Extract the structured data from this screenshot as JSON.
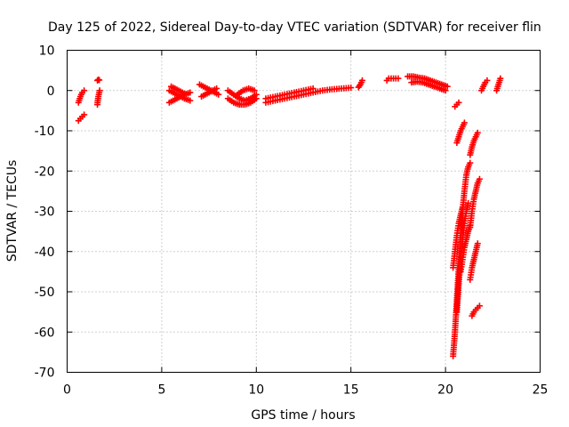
{
  "chart_data": {
    "type": "scatter",
    "title": "Day 125 of 2022, Sidereal Day-to-day VTEC variation (SDTVAR) for receiver flin",
    "xlabel": "GPS time / hours",
    "ylabel": "SDTVAR / TECUs",
    "xlim": [
      0,
      25
    ],
    "ylim": [
      -70,
      10
    ],
    "xticks": [
      "0",
      "5",
      "10",
      "15",
      "20",
      "25"
    ],
    "yticks": [
      "10",
      "0",
      "-10",
      "-20",
      "-30",
      "-40",
      "-50",
      "-60",
      "-70"
    ],
    "grid": true,
    "marker": "plus",
    "color": "#ff0000",
    "segments": [
      {
        "x": [
          0.6,
          0.7,
          0.8,
          0.9
        ],
        "y": [
          -3,
          -1.5,
          -0.5,
          0
        ]
      },
      {
        "x": [
          0.6,
          0.7,
          0.8,
          0.9
        ],
        "y": [
          -7.5,
          -7,
          -6.5,
          -6
        ]
      },
      {
        "x": [
          1.6,
          1.65,
          1.7
        ],
        "y": [
          2.5,
          2.7,
          2.6
        ]
      },
      {
        "x": [
          1.6,
          1.62,
          1.65,
          1.7,
          1.72
        ],
        "y": [
          -3.5,
          -2.5,
          -1.5,
          -0.5,
          0
        ]
      },
      {
        "x": [
          5.4,
          5.6,
          5.8,
          6.0,
          6.2,
          6.5
        ],
        "y": [
          0,
          -0.5,
          -1,
          -1.5,
          -2,
          -2.5
        ]
      },
      {
        "x": [
          5.4,
          5.6,
          5.8,
          6.0,
          6.2,
          6.5
        ],
        "y": [
          -3,
          -2.5,
          -2,
          -1.5,
          -1,
          -0.5
        ]
      },
      {
        "x": [
          5.5,
          5.7,
          5.9,
          6.1,
          6.3
        ],
        "y": [
          1,
          0.5,
          0,
          -0.5,
          -1
        ]
      },
      {
        "x": [
          7.0,
          7.2,
          7.4,
          7.6,
          7.8,
          8.0
        ],
        "y": [
          1.5,
          1,
          0.5,
          0,
          -0.5,
          -1
        ]
      },
      {
        "x": [
          7.1,
          7.3,
          7.5,
          7.7,
          7.9
        ],
        "y": [
          -1.5,
          -1,
          -0.5,
          0,
          0.5
        ]
      },
      {
        "x": [
          8.5,
          8.8,
          9.1,
          9.4,
          9.7,
          10.0
        ],
        "y": [
          0,
          -1,
          -2,
          -2.5,
          -2,
          -1
        ]
      },
      {
        "x": [
          8.5,
          8.8,
          9.1,
          9.4,
          9.7,
          10.0
        ],
        "y": [
          -2,
          -3,
          -3.5,
          -3.5,
          -3,
          -2
        ]
      },
      {
        "x": [
          9.0,
          9.3,
          9.6,
          9.9
        ],
        "y": [
          -1,
          0,
          0.5,
          0
        ]
      },
      {
        "x": [
          10.5,
          11.0,
          11.5,
          12.0,
          12.5,
          13.0,
          13.5,
          14.0,
          14.5,
          15.0
        ],
        "y": [
          -3,
          -2.5,
          -2,
          -1.5,
          -1,
          -0.5,
          0,
          0.3,
          0.5,
          0.7
        ]
      },
      {
        "x": [
          10.5,
          11.0,
          11.5,
          12.0,
          12.5,
          13.0
        ],
        "y": [
          -2,
          -1.5,
          -1,
          -0.5,
          0,
          0.5
        ]
      },
      {
        "x": [
          15.4,
          15.5,
          15.6
        ],
        "y": [
          0.8,
          1.5,
          2.5
        ]
      },
      {
        "x": [
          16.9,
          17.0,
          17.5
        ],
        "y": [
          2.5,
          3,
          3
        ]
      },
      {
        "x": [
          18.0,
          18.3,
          18.6,
          18.9,
          19.2,
          19.5,
          19.8,
          20.1
        ],
        "y": [
          3.5,
          3.5,
          3.2,
          3,
          2.5,
          2,
          1.5,
          1
        ]
      },
      {
        "x": [
          18.2,
          18.5,
          18.8,
          19.1,
          19.4,
          19.7,
          20.0
        ],
        "y": [
          2,
          2.2,
          2,
          1.5,
          1,
          0.5,
          0
        ]
      },
      {
        "x": [
          20.5,
          20.6,
          20.7
        ],
        "y": [
          -4,
          -3.5,
          -3
        ]
      },
      {
        "x": [
          20.6,
          20.7,
          20.8,
          20.9,
          21.0
        ],
        "y": [
          -13,
          -11.5,
          -10,
          -9,
          -8
        ]
      },
      {
        "x": [
          21.3,
          21.4,
          21.5,
          21.6,
          21.7
        ],
        "y": [
          -16,
          -14,
          -12.5,
          -11.5,
          -10.5
        ]
      },
      {
        "x": [
          20.4,
          20.5,
          20.6,
          20.7,
          20.8,
          20.9,
          21.0,
          21.1,
          21.2,
          21.3
        ],
        "y": [
          -66,
          -60,
          -52,
          -44,
          -36,
          -30,
          -25,
          -21,
          -19,
          -18
        ]
      },
      {
        "x": [
          20.6,
          20.7,
          20.8,
          20.9,
          21.0,
          21.1,
          21.2
        ],
        "y": [
          -55,
          -48,
          -42,
          -37,
          -33,
          -30,
          -28
        ]
      },
      {
        "x": [
          20.4,
          20.5,
          20.6,
          20.7,
          20.8,
          20.9
        ],
        "y": [
          -44,
          -40,
          -36,
          -33,
          -31,
          -29
        ]
      },
      {
        "x": [
          21.3,
          21.4,
          21.5,
          21.6,
          21.7,
          21.8
        ],
        "y": [
          -34,
          -30,
          -27,
          -25,
          -23,
          -22
        ]
      },
      {
        "x": [
          20.8,
          20.9,
          21.0,
          21.1,
          21.2,
          21.3
        ],
        "y": [
          -45,
          -42,
          -39,
          -37,
          -35,
          -33.5
        ]
      },
      {
        "x": [
          21.3,
          21.4,
          21.5,
          21.6,
          21.7
        ],
        "y": [
          -47,
          -44,
          -42,
          -40,
          -38
        ]
      },
      {
        "x": [
          21.4,
          21.5,
          21.6,
          21.7,
          21.8
        ],
        "y": [
          -56,
          -55,
          -54.5,
          -54,
          -53.5
        ]
      },
      {
        "x": [
          21.9,
          22.0,
          22.1,
          22.2
        ],
        "y": [
          0,
          1,
          2,
          2.5
        ]
      },
      {
        "x": [
          22.7,
          22.8,
          22.9
        ],
        "y": [
          0,
          1.5,
          3
        ]
      }
    ]
  }
}
